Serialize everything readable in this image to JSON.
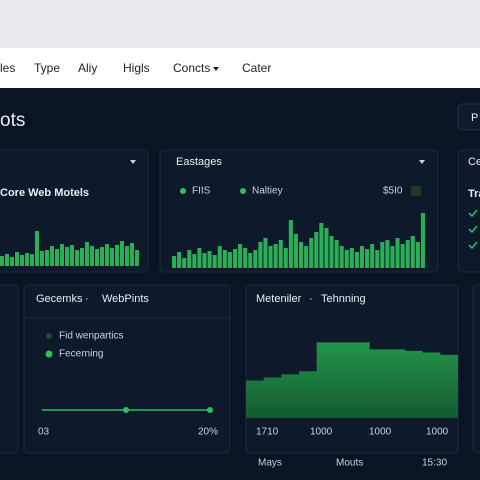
{
  "nav": {
    "items": [
      "les",
      "Type",
      "Aliy",
      "Higls",
      "Concts",
      "Cater"
    ]
  },
  "header": {
    "title": "ots",
    "button": "P"
  },
  "panels": [
    {
      "title": "Core Web Motels",
      "bars": [
        10,
        12,
        9,
        14,
        11,
        13,
        12,
        35,
        15,
        16,
        20,
        17,
        22,
        19,
        21,
        16,
        18,
        24,
        20,
        17,
        19,
        22,
        18,
        21,
        25,
        20,
        23,
        16
      ]
    },
    {
      "title": "Eastages",
      "legend": [
        "FIIS",
        "Naltiey"
      ],
      "value": "$5I0",
      "bars": [
        12,
        16,
        10,
        18,
        14,
        20,
        15,
        17,
        13,
        22,
        18,
        16,
        19,
        24,
        20,
        15,
        18,
        26,
        30,
        22,
        24,
        28,
        20,
        48,
        34,
        26,
        22,
        30,
        36,
        45,
        40,
        32,
        28,
        22,
        18,
        20,
        16,
        22,
        19,
        24,
        18,
        26,
        28,
        22,
        30,
        24,
        28,
        32,
        26,
        55
      ]
    },
    {
      "title": "Ce",
      "subtitle": "Tra"
    },
    {
      "title": "Gecemks",
      "tab": "WebPints",
      "legend": [
        "Fid wenpartics",
        "Fecerning"
      ],
      "line": [
        10,
        10,
        10
      ],
      "labels": [
        "03",
        "20%"
      ]
    },
    {
      "title": "Meteniler",
      "tab": "Tehnning",
      "area": [
        48,
        52,
        56,
        60,
        97,
        97,
        97,
        88,
        88,
        86,
        84,
        81
      ],
      "labels": [
        "1710",
        "1000",
        "1000",
        "1000"
      ]
    }
  ],
  "footer": [
    "Mays",
    "Mouts",
    "15:30"
  ]
}
